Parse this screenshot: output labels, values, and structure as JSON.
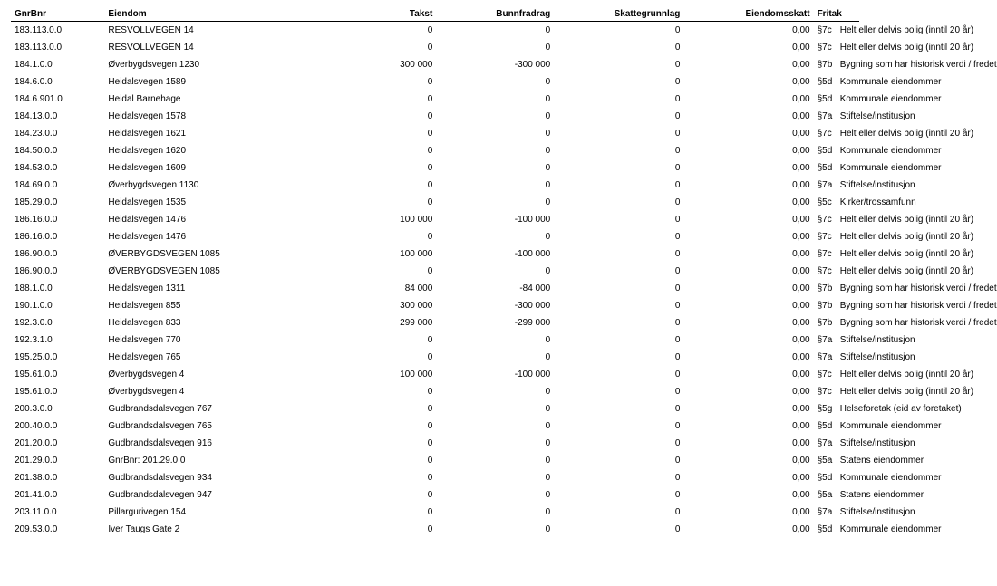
{
  "headers": {
    "gnr": "GnrBnr",
    "eiendom": "Eiendom",
    "takst": "Takst",
    "bunnfradrag": "Bunnfradrag",
    "skattegrunnlag": "Skattegrunnlag",
    "eiendomsskatt": "Eiendomsskatt",
    "fritak": "Fritak"
  },
  "rows": [
    {
      "gnr": "183.113.0.0",
      "eiendom": "RESVOLLVEGEN 14",
      "takst": "0",
      "bunn": "0",
      "skg": "0",
      "skatt": "0,00",
      "fcode": "§7c",
      "fdesc": "Helt eller delvis bolig (inntil 20 år)"
    },
    {
      "gnr": "183.113.0.0",
      "eiendom": "RESVOLLVEGEN 14",
      "takst": "0",
      "bunn": "0",
      "skg": "0",
      "skatt": "0,00",
      "fcode": "§7c",
      "fdesc": "Helt eller delvis bolig (inntil 20 år)"
    },
    {
      "gnr": "184.1.0.0",
      "eiendom": "Øverbygdsvegen 1230",
      "takst": "300 000",
      "bunn": "-300 000",
      "skg": "0",
      "skatt": "0,00",
      "fcode": "§7b",
      "fdesc": "Bygning som har historisk verdi / fredet"
    },
    {
      "gnr": "184.6.0.0",
      "eiendom": "Heidalsvegen 1589",
      "takst": "0",
      "bunn": "0",
      "skg": "0",
      "skatt": "0,00",
      "fcode": "§5d",
      "fdesc": "Kommunale eiendommer"
    },
    {
      "gnr": "184.6.901.0",
      "eiendom": "Heidal Barnehage",
      "takst": "0",
      "bunn": "0",
      "skg": "0",
      "skatt": "0,00",
      "fcode": "§5d",
      "fdesc": "Kommunale eiendommer"
    },
    {
      "gnr": "184.13.0.0",
      "eiendom": "Heidalsvegen 1578",
      "takst": "0",
      "bunn": "0",
      "skg": "0",
      "skatt": "0,00",
      "fcode": "§7a",
      "fdesc": "Stiftelse/institusjon"
    },
    {
      "gnr": "184.23.0.0",
      "eiendom": "Heidalsvegen 1621",
      "takst": "0",
      "bunn": "0",
      "skg": "0",
      "skatt": "0,00",
      "fcode": "§7c",
      "fdesc": "Helt eller delvis bolig (inntil 20 år)"
    },
    {
      "gnr": "184.50.0.0",
      "eiendom": "Heidalsvegen 1620",
      "takst": "0",
      "bunn": "0",
      "skg": "0",
      "skatt": "0,00",
      "fcode": "§5d",
      "fdesc": "Kommunale eiendommer"
    },
    {
      "gnr": "184.53.0.0",
      "eiendom": "Heidalsvegen 1609",
      "takst": "0",
      "bunn": "0",
      "skg": "0",
      "skatt": "0,00",
      "fcode": "§5d",
      "fdesc": "Kommunale eiendommer"
    },
    {
      "gnr": "184.69.0.0",
      "eiendom": "Øverbygdsvegen 1130",
      "takst": "0",
      "bunn": "0",
      "skg": "0",
      "skatt": "0,00",
      "fcode": "§7a",
      "fdesc": "Stiftelse/institusjon"
    },
    {
      "gnr": "185.29.0.0",
      "eiendom": "Heidalsvegen 1535",
      "takst": "0",
      "bunn": "0",
      "skg": "0",
      "skatt": "0,00",
      "fcode": "§5c",
      "fdesc": "Kirker/trossamfunn"
    },
    {
      "gnr": "186.16.0.0",
      "eiendom": "Heidalsvegen 1476",
      "takst": "100 000",
      "bunn": "-100 000",
      "skg": "0",
      "skatt": "0,00",
      "fcode": "§7c",
      "fdesc": "Helt eller delvis bolig (inntil 20 år)"
    },
    {
      "gnr": "186.16.0.0",
      "eiendom": "Heidalsvegen 1476",
      "takst": "0",
      "bunn": "0",
      "skg": "0",
      "skatt": "0,00",
      "fcode": "§7c",
      "fdesc": "Helt eller delvis bolig (inntil 20 år)"
    },
    {
      "gnr": "186.90.0.0",
      "eiendom": "ØVERBYGDSVEGEN 1085",
      "takst": "100 000",
      "bunn": "-100 000",
      "skg": "0",
      "skatt": "0,00",
      "fcode": "§7c",
      "fdesc": "Helt eller delvis bolig (inntil 20 år)"
    },
    {
      "gnr": "186.90.0.0",
      "eiendom": "ØVERBYGDSVEGEN 1085",
      "takst": "0",
      "bunn": "0",
      "skg": "0",
      "skatt": "0,00",
      "fcode": "§7c",
      "fdesc": "Helt eller delvis bolig (inntil 20 år)"
    },
    {
      "gnr": "188.1.0.0",
      "eiendom": "Heidalsvegen 1311",
      "takst": "84 000",
      "bunn": "-84 000",
      "skg": "0",
      "skatt": "0,00",
      "fcode": "§7b",
      "fdesc": "Bygning som har historisk verdi / fredet"
    },
    {
      "gnr": "190.1.0.0",
      "eiendom": "Heidalsvegen 855",
      "takst": "300 000",
      "bunn": "-300 000",
      "skg": "0",
      "skatt": "0,00",
      "fcode": "§7b",
      "fdesc": "Bygning som har historisk verdi / fredet"
    },
    {
      "gnr": "192.3.0.0",
      "eiendom": "Heidalsvegen 833",
      "takst": "299 000",
      "bunn": "-299 000",
      "skg": "0",
      "skatt": "0,00",
      "fcode": "§7b",
      "fdesc": "Bygning som har historisk verdi / fredet"
    },
    {
      "gnr": "192.3.1.0",
      "eiendom": "Heidalsvegen 770",
      "takst": "0",
      "bunn": "0",
      "skg": "0",
      "skatt": "0,00",
      "fcode": "§7a",
      "fdesc": "Stiftelse/institusjon"
    },
    {
      "gnr": "195.25.0.0",
      "eiendom": "Heidalsvegen 765",
      "takst": "0",
      "bunn": "0",
      "skg": "0",
      "skatt": "0,00",
      "fcode": "§7a",
      "fdesc": "Stiftelse/institusjon"
    },
    {
      "gnr": "195.61.0.0",
      "eiendom": "Øverbygdsvegen 4",
      "takst": "100 000",
      "bunn": "-100 000",
      "skg": "0",
      "skatt": "0,00",
      "fcode": "§7c",
      "fdesc": "Helt eller delvis bolig (inntil 20 år)"
    },
    {
      "gnr": "195.61.0.0",
      "eiendom": "Øverbygdsvegen 4",
      "takst": "0",
      "bunn": "0",
      "skg": "0",
      "skatt": "0,00",
      "fcode": "§7c",
      "fdesc": "Helt eller delvis bolig (inntil 20 år)"
    },
    {
      "gnr": "200.3.0.0",
      "eiendom": "Gudbrandsdalsvegen 767",
      "takst": "0",
      "bunn": "0",
      "skg": "0",
      "skatt": "0,00",
      "fcode": "§5g",
      "fdesc": "Helseforetak (eid av foretaket)"
    },
    {
      "gnr": "200.40.0.0",
      "eiendom": "Gudbrandsdalsvegen 765",
      "takst": "0",
      "bunn": "0",
      "skg": "0",
      "skatt": "0,00",
      "fcode": "§5d",
      "fdesc": "Kommunale eiendommer"
    },
    {
      "gnr": "201.20.0.0",
      "eiendom": "Gudbrandsdalsvegen 916",
      "takst": "0",
      "bunn": "0",
      "skg": "0",
      "skatt": "0,00",
      "fcode": "§7a",
      "fdesc": "Stiftelse/institusjon"
    },
    {
      "gnr": "201.29.0.0",
      "eiendom": "GnrBnr: 201.29.0.0",
      "takst": "0",
      "bunn": "0",
      "skg": "0",
      "skatt": "0,00",
      "fcode": "§5a",
      "fdesc": "Statens eiendommer"
    },
    {
      "gnr": "201.38.0.0",
      "eiendom": "Gudbrandsdalsvegen 934",
      "takst": "0",
      "bunn": "0",
      "skg": "0",
      "skatt": "0,00",
      "fcode": "§5d",
      "fdesc": "Kommunale eiendommer"
    },
    {
      "gnr": "201.41.0.0",
      "eiendom": "Gudbrandsdalsvegen 947",
      "takst": "0",
      "bunn": "0",
      "skg": "0",
      "skatt": "0,00",
      "fcode": "§5a",
      "fdesc": "Statens eiendommer"
    },
    {
      "gnr": "203.11.0.0",
      "eiendom": "Pillargurivegen 154",
      "takst": "0",
      "bunn": "0",
      "skg": "0",
      "skatt": "0,00",
      "fcode": "§7a",
      "fdesc": "Stiftelse/institusjon"
    },
    {
      "gnr": "209.53.0.0",
      "eiendom": "Iver Taugs Gate 2",
      "takst": "0",
      "bunn": "0",
      "skg": "0",
      "skatt": "0,00",
      "fcode": "§5d",
      "fdesc": "Kommunale eiendommer"
    }
  ]
}
